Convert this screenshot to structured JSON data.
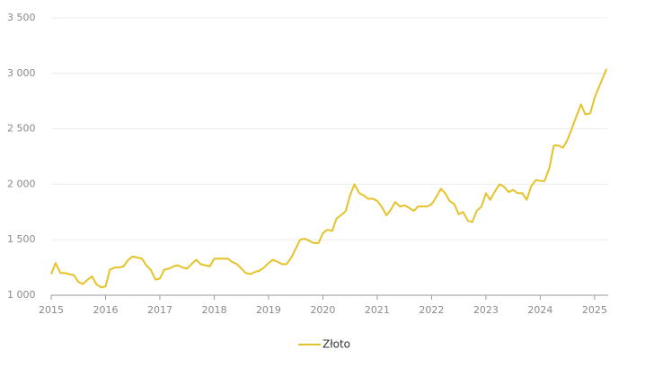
{
  "chart_data": {
    "type": "line",
    "x": [
      2015.0,
      2015.08,
      2015.17,
      2015.25,
      2015.33,
      2015.42,
      2015.5,
      2015.58,
      2015.67,
      2015.75,
      2015.83,
      2015.92,
      2016.0,
      2016.08,
      2016.17,
      2016.25,
      2016.33,
      2016.42,
      2016.5,
      2016.58,
      2016.67,
      2016.75,
      2016.83,
      2016.92,
      2017.0,
      2017.08,
      2017.17,
      2017.25,
      2017.33,
      2017.42,
      2017.5,
      2017.58,
      2017.67,
      2017.75,
      2017.83,
      2017.92,
      2018.0,
      2018.08,
      2018.17,
      2018.25,
      2018.33,
      2018.42,
      2018.5,
      2018.58,
      2018.67,
      2018.75,
      2018.83,
      2018.92,
      2019.0,
      2019.08,
      2019.17,
      2019.25,
      2019.33,
      2019.42,
      2019.5,
      2019.58,
      2019.67,
      2019.75,
      2019.83,
      2019.92,
      2020.0,
      2020.08,
      2020.17,
      2020.25,
      2020.33,
      2020.42,
      2020.5,
      2020.58,
      2020.67,
      2020.75,
      2020.83,
      2020.92,
      2021.0,
      2021.08,
      2021.17,
      2021.25,
      2021.33,
      2021.42,
      2021.5,
      2021.58,
      2021.67,
      2021.75,
      2021.83,
      2021.92,
      2022.0,
      2022.08,
      2022.17,
      2022.25,
      2022.33,
      2022.42,
      2022.5,
      2022.58,
      2022.67,
      2022.75,
      2022.83,
      2022.92,
      2023.0,
      2023.08,
      2023.17,
      2023.25,
      2023.33,
      2023.42,
      2023.5,
      2023.58,
      2023.67,
      2023.75,
      2023.83,
      2023.92,
      2024.0,
      2024.08,
      2024.17,
      2024.25,
      2024.33,
      2024.42,
      2024.5,
      2024.58,
      2024.67,
      2024.75,
      2024.83,
      2024.92,
      2025.0,
      2025.1,
      2025.22
    ],
    "series": [
      {
        "name": "Złoto",
        "color": "#e6c229",
        "values": [
          1190,
          1290,
          1200,
          1200,
          1190,
          1180,
          1120,
          1100,
          1140,
          1170,
          1100,
          1070,
          1080,
          1230,
          1250,
          1250,
          1260,
          1320,
          1350,
          1340,
          1330,
          1270,
          1230,
          1140,
          1150,
          1230,
          1240,
          1260,
          1270,
          1250,
          1240,
          1280,
          1320,
          1280,
          1270,
          1260,
          1330,
          1330,
          1330,
          1330,
          1300,
          1280,
          1240,
          1200,
          1190,
          1210,
          1220,
          1250,
          1290,
          1320,
          1300,
          1280,
          1280,
          1340,
          1420,
          1500,
          1510,
          1490,
          1470,
          1470,
          1560,
          1590,
          1580,
          1690,
          1720,
          1760,
          1900,
          2000,
          1920,
          1900,
          1870,
          1870,
          1850,
          1800,
          1720,
          1770,
          1840,
          1800,
          1810,
          1790,
          1760,
          1800,
          1800,
          1800,
          1820,
          1880,
          1960,
          1920,
          1850,
          1820,
          1730,
          1750,
          1670,
          1660,
          1760,
          1800,
          1920,
          1860,
          1940,
          2000,
          1980,
          1930,
          1950,
          1920,
          1920,
          1860,
          1980,
          2040,
          2030,
          2030,
          2150,
          2350,
          2350,
          2330,
          2400,
          2500,
          2620,
          2720,
          2630,
          2640,
          2780,
          2900,
          3040
        ]
      }
    ],
    "xlim": [
      2015,
      2025.25
    ],
    "xticks": [
      2015,
      2016,
      2017,
      2018,
      2019,
      2020,
      2021,
      2022,
      2023,
      2024,
      2025
    ],
    "ylim": [
      1000,
      3500
    ],
    "yticks": [
      {
        "value": 1000,
        "label": "1 000"
      },
      {
        "value": 1500,
        "label": "1 500"
      },
      {
        "value": 2000,
        "label": "2 000"
      },
      {
        "value": 2500,
        "label": "2 500"
      },
      {
        "value": 3000,
        "label": "3 000"
      },
      {
        "value": 3500,
        "label": "3 500"
      }
    ],
    "grid": true,
    "legend": "bottom"
  }
}
